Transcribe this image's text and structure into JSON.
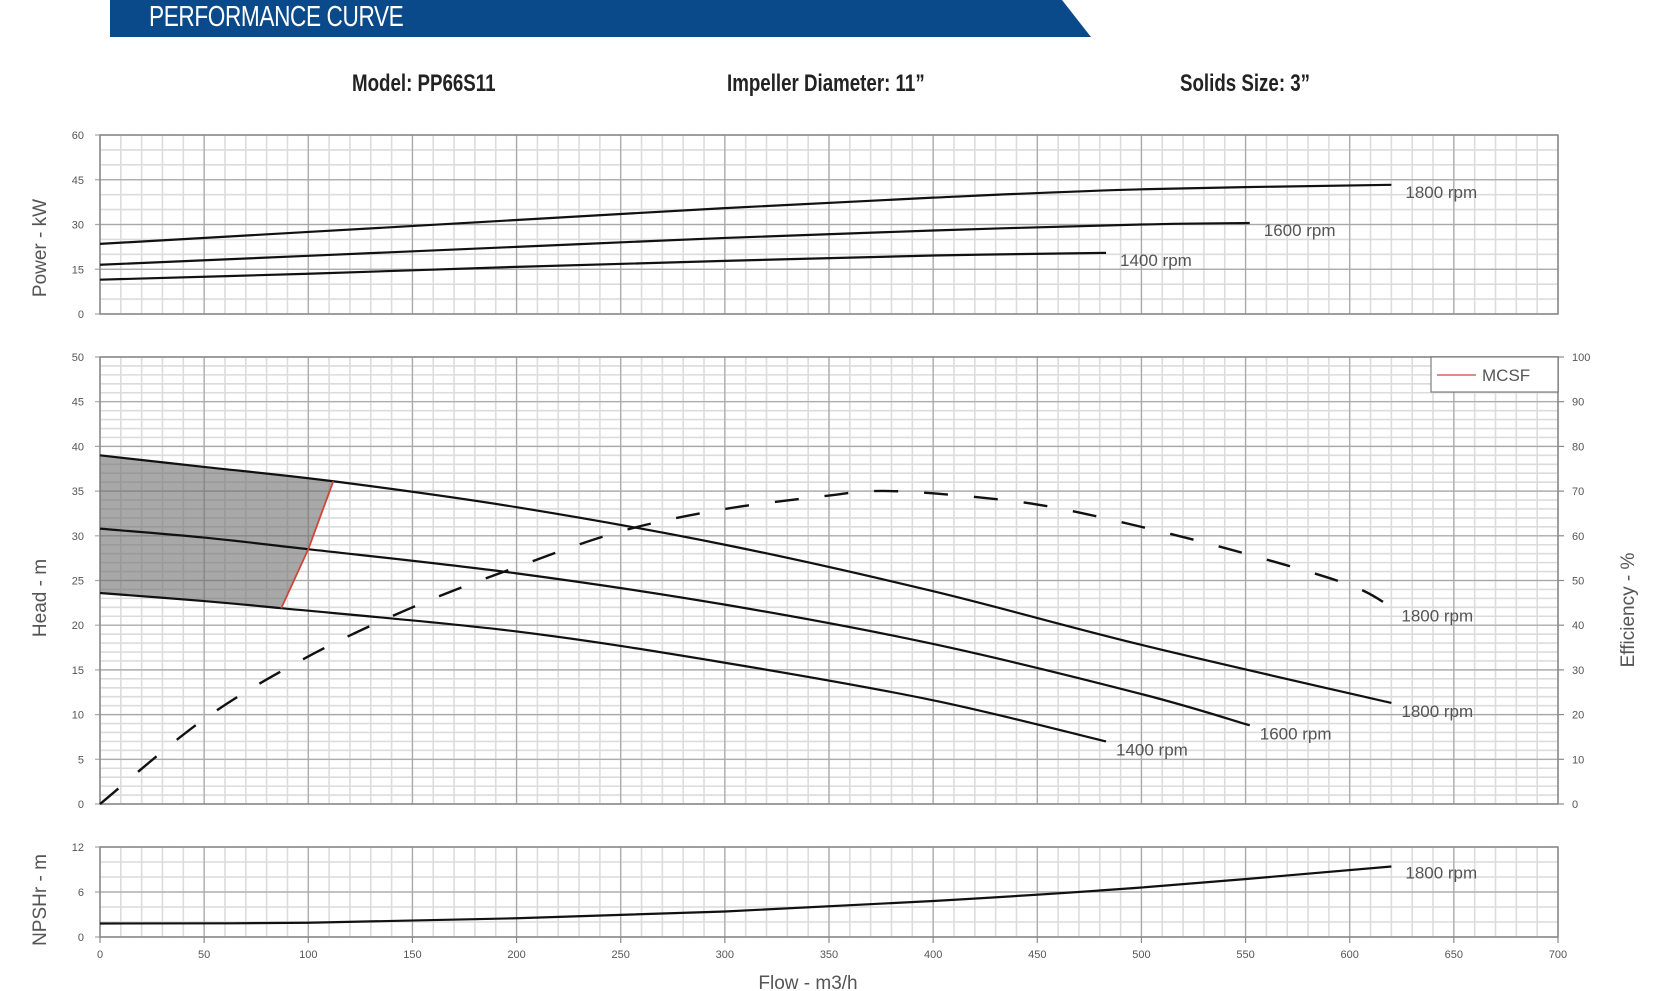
{
  "header": {
    "title": "PERFORMANCE CURVE",
    "banner_color": "#0b4a8a",
    "model": "Model: PP66S11",
    "impeller": "Impeller Diameter: 11”",
    "solids": "Solids Size: 3”"
  },
  "legend": {
    "mcsf_label": "MCSF",
    "mcsf_color": "#d0453a"
  },
  "axes": {
    "x_label": "Flow - m3/h",
    "x_ticks": [
      0,
      50,
      100,
      150,
      200,
      250,
      300,
      350,
      400,
      450,
      500,
      550,
      600,
      650,
      700
    ],
    "power_label": "Power - kW",
    "power_ticks": [
      0,
      15,
      30,
      45,
      60
    ],
    "head_label": "Head - m",
    "head_ticks": [
      0,
      5,
      10,
      15,
      20,
      25,
      30,
      35,
      40,
      45,
      50
    ],
    "eff_label": "Efficiency - %",
    "eff_ticks": [
      0,
      10,
      20,
      30,
      40,
      50,
      60,
      70,
      80,
      90,
      100
    ],
    "npsh_label": "NPSHr - m",
    "npsh_ticks": [
      0,
      6,
      12
    ]
  },
  "chart_data": [
    {
      "type": "line",
      "title": "Power",
      "xlabel": "Flow - m3/h",
      "ylabel": "Power - kW",
      "xlim": [
        0,
        700
      ],
      "ylim": [
        0,
        60
      ],
      "grid": true,
      "series": [
        {
          "name": "1800 rpm",
          "x": [
            0,
            100,
            200,
            300,
            400,
            500,
            620
          ],
          "y": [
            23.5,
            27.5,
            31.5,
            35.5,
            39.0,
            41.8,
            43.3
          ]
        },
        {
          "name": "1600 rpm",
          "x": [
            0,
            100,
            200,
            300,
            400,
            500,
            552
          ],
          "y": [
            16.5,
            19.5,
            22.5,
            25.5,
            28.0,
            30.0,
            30.5
          ]
        },
        {
          "name": "1400 rpm",
          "x": [
            0,
            100,
            200,
            300,
            400,
            483
          ],
          "y": [
            11.5,
            13.5,
            15.8,
            17.8,
            19.6,
            20.5
          ]
        }
      ]
    },
    {
      "type": "line",
      "title": "Head & Efficiency",
      "xlabel": "Flow - m3/h",
      "ylabel": "Head - m",
      "y2label": "Efficiency - %",
      "xlim": [
        0,
        700
      ],
      "ylim": [
        0,
        50
      ],
      "y2lim": [
        0,
        100
      ],
      "grid": true,
      "legend": [
        "MCSF"
      ],
      "legend_position": "top-right",
      "series": [
        {
          "name": "1800 rpm",
          "x": [
            0,
            50,
            112,
            200,
            300,
            400,
            500,
            620
          ],
          "y": [
            39.0,
            37.7,
            36.1,
            33.2,
            29.0,
            23.8,
            17.8,
            11.3
          ]
        },
        {
          "name": "1600 rpm",
          "x": [
            0,
            50,
            100,
            200,
            300,
            400,
            500,
            552
          ],
          "y": [
            30.8,
            29.8,
            28.5,
            25.8,
            22.3,
            17.9,
            12.3,
            8.8
          ]
        },
        {
          "name": "1400 rpm",
          "x": [
            0,
            50,
            87,
            200,
            300,
            400,
            483
          ],
          "y": [
            23.6,
            22.7,
            21.9,
            19.3,
            15.8,
            11.6,
            7.0
          ]
        },
        {
          "name": "Efficiency 1800 rpm (%)",
          "axis": "y2",
          "dashed": true,
          "x": [
            0,
            50,
            100,
            150,
            200,
            250,
            300,
            350,
            370,
            400,
            450,
            500,
            550,
            600,
            620
          ],
          "y": [
            0,
            19,
            33,
            44,
            53,
            61,
            66,
            69,
            70,
            69.5,
            67,
            62,
            56,
            49,
            44
          ]
        },
        {
          "name": "MCSF",
          "color": "#d0453a",
          "x": [
            112,
            100,
            87
          ],
          "y": [
            36.1,
            28.5,
            21.9
          ]
        }
      ],
      "annotations": [
        "1800 rpm",
        "1800 rpm",
        "1600 rpm",
        "1400 rpm"
      ],
      "shaded_region": "Below MCSF (0 to MCSF flow, between 1400 and 1800 rpm curves)"
    },
    {
      "type": "line",
      "title": "NPSHr",
      "xlabel": "Flow - m3/h",
      "ylabel": "NPSHr - m",
      "xlim": [
        0,
        700
      ],
      "ylim": [
        0,
        12
      ],
      "grid": true,
      "series": [
        {
          "name": "1800 rpm",
          "x": [
            0,
            100,
            200,
            300,
            400,
            500,
            620
          ],
          "y": [
            1.8,
            1.9,
            2.5,
            3.4,
            4.8,
            6.6,
            9.4
          ]
        }
      ]
    }
  ]
}
